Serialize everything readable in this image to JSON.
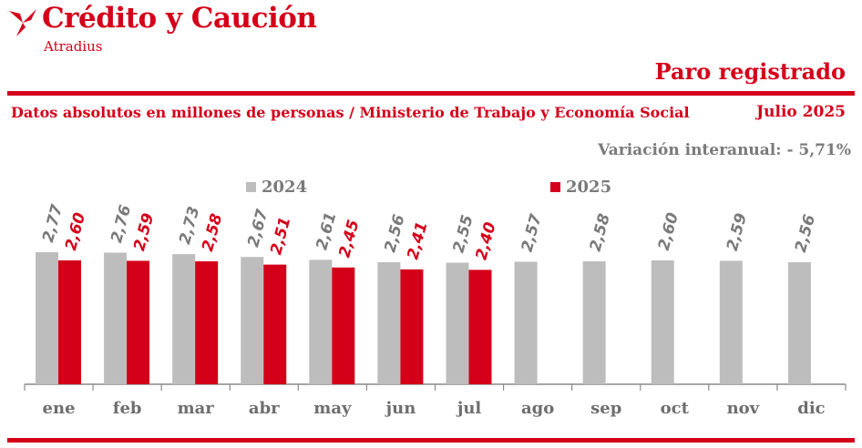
{
  "header": {
    "brand": "Crédito y Caución",
    "brand_sub": "Atradius",
    "title": "Paro registrado",
    "subtitle": "Datos absolutos en millones de personas / Ministerio de Trabajo y Economía Social",
    "date": "Julio 2025",
    "variation": "Variación interanual: - 5,71%"
  },
  "colors": {
    "accent": "#d4001a",
    "series_2024": "#bdbdbd",
    "series_2025": "#d4001a",
    "label_grey": "#7a7a7a"
  },
  "chart_data": {
    "type": "bar",
    "categories": [
      "ene",
      "feb",
      "mar",
      "abr",
      "may",
      "jun",
      "jul",
      "ago",
      "sep",
      "oct",
      "nov",
      "dic"
    ],
    "series": [
      {
        "name": "2024",
        "values": [
          2.77,
          2.76,
          2.73,
          2.67,
          2.61,
          2.56,
          2.55,
          2.57,
          2.58,
          2.6,
          2.59,
          2.56
        ],
        "labels": [
          "2,77",
          "2,76",
          "2,73",
          "2,67",
          "2,61",
          "2,56",
          "2,55",
          "2,57",
          "2,58",
          "2,60",
          "2,59",
          "2,56"
        ]
      },
      {
        "name": "2025",
        "values": [
          2.6,
          2.59,
          2.58,
          2.51,
          2.45,
          2.41,
          2.4,
          null,
          null,
          null,
          null,
          null
        ],
        "labels": [
          "2,60",
          "2,59",
          "2,58",
          "2,51",
          "2,45",
          "2,41",
          "2,40",
          null,
          null,
          null,
          null,
          null
        ]
      }
    ],
    "legend_position": "top",
    "grid": false
  }
}
